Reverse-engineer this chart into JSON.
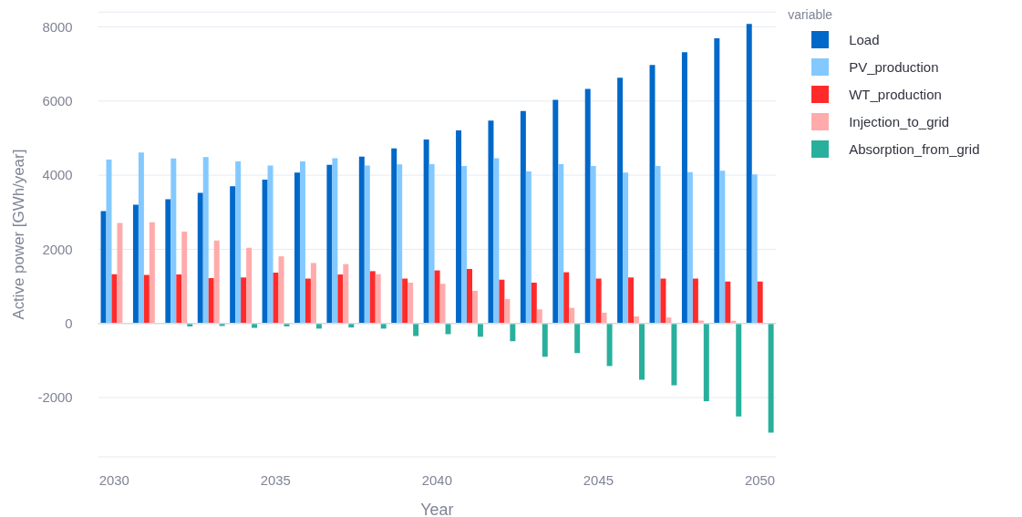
{
  "chart_data": {
    "type": "bar",
    "xlabel": "Year",
    "ylabel": "Active power [GWh/year]",
    "legend_title": "variable",
    "x": [
      2030,
      2031,
      2032,
      2033,
      2034,
      2035,
      2036,
      2037,
      2038,
      2039,
      2040,
      2041,
      2042,
      2043,
      2044,
      2045,
      2046,
      2047,
      2048,
      2049,
      2050
    ],
    "series": [
      {
        "name": "Load",
        "color": "#0068c9",
        "values": [
          3030,
          3200,
          3350,
          3520,
          3700,
          3880,
          4070,
          4280,
          4500,
          4720,
          4960,
          5210,
          5470,
          5730,
          6030,
          6330,
          6630,
          6970,
          7320,
          7690,
          8080
        ]
      },
      {
        "name": "PV_production",
        "color": "#83c9ff",
        "values": [
          4420,
          4610,
          4450,
          4490,
          4370,
          4260,
          4370,
          4460,
          4260,
          4290,
          4300,
          4250,
          4460,
          4100,
          4300,
          4250,
          4070,
          4250,
          4080,
          4120,
          4020
        ]
      },
      {
        "name": "WT_production",
        "color": "#ff2b2b",
        "values": [
          1330,
          1310,
          1320,
          1220,
          1240,
          1370,
          1210,
          1320,
          1410,
          1210,
          1430,
          1470,
          1180,
          1100,
          1380,
          1210,
          1240,
          1210,
          1210,
          1130,
          1130
        ]
      },
      {
        "name": "Injection_to_grid",
        "color": "#ffabab",
        "values": [
          2710,
          2730,
          2480,
          2240,
          2040,
          1810,
          1630,
          1600,
          1330,
          1100,
          1070,
          880,
          660,
          380,
          420,
          290,
          190,
          160,
          80,
          70,
          null
        ]
      },
      {
        "name": "Absorption_from_grid",
        "color": "#29b09d",
        "values": [
          null,
          null,
          -80,
          -70,
          -120,
          -80,
          -140,
          -110,
          -140,
          -340,
          -290,
          -360,
          -480,
          -900,
          -800,
          -1150,
          -1520,
          -1670,
          -2100,
          -2510,
          -2950
        ]
      }
    ],
    "xlim": [
      2029.5,
      2050.5
    ],
    "xticks": [
      2030,
      2035,
      2040,
      2045,
      2050
    ],
    "ylim": [
      -3600,
      8400
    ],
    "yticks": [
      -2000,
      0,
      2000,
      4000,
      6000,
      8000
    ],
    "grid": "y",
    "legend": "top right"
  }
}
